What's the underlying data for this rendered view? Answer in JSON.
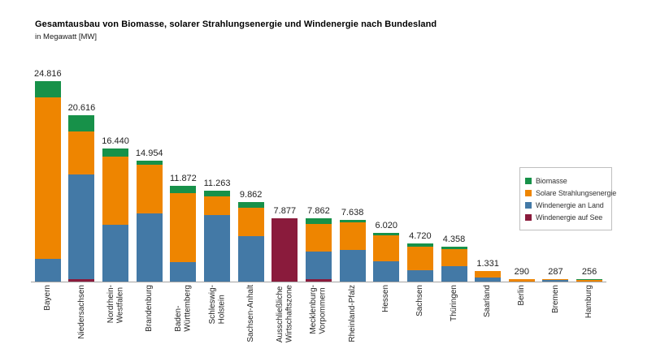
{
  "header": {
    "title": "Gesamtausbau von Biomasse, solarer Strahlungsenergie und Windenergie nach Bundesland",
    "subtitle": "in Megawatt [MW]"
  },
  "colors": {
    "biomasse": "#179149",
    "solar": "#EE8500",
    "wind_land": "#4379A6",
    "wind_see": "#8A1B3C",
    "axis_line": "#a3a3a3",
    "value_label": "#1f1f1f"
  },
  "legend": {
    "items": [
      {
        "id": "biomasse",
        "label": "Biomasse",
        "color": "#179149"
      },
      {
        "id": "solare-strahlungsenergie",
        "label": "Solare Strahlungsenergie",
        "color": "#EE8500"
      },
      {
        "id": "windenergie-an-land",
        "label": "Windenergie an Land",
        "color": "#4379A6"
      },
      {
        "id": "windenergie-auf-see",
        "label": "Windenergie auf See",
        "color": "#8A1B3C"
      }
    ]
  },
  "chart_data": {
    "type": "bar",
    "stacked": true,
    "title": "Gesamtausbau von Biomasse, solarer Strahlungsenergie und Windenergie nach Bundesland",
    "unit": "Megawatt [MW]",
    "grid": false,
    "y_axis_visible": false,
    "legend_position": "right",
    "ylim": [
      0,
      25000
    ],
    "stack_order_bottom_to_top": [
      "Windenergie auf See",
      "Windenergie an Land",
      "Solare Strahlungsenergie",
      "Biomasse"
    ],
    "categories": [
      "Bayern",
      "Niedersachsen",
      "Nordrhein-Westfalen",
      "Brandenburg",
      "Baden-Württemberg",
      "Schleswig-Holstein",
      "Sachsen-Anhalt",
      "Ausschließliche Wirtschaftszone",
      "Mecklenburg-Vorpommern",
      "Rheinland-Pfalz",
      "Hessen",
      "Sachsen",
      "Thüringen",
      "Saarland",
      "Berlin",
      "Bremen",
      "Hamburg"
    ],
    "category_ids": [
      "bayern",
      "niedersachsen",
      "nordrhein-westfalen",
      "brandenburg",
      "baden-wuerttemberg",
      "schleswig-holstein",
      "sachsen-anhalt",
      "ausschliessliche-wirtschaftszone",
      "mecklenburg-vorpommern",
      "rheinland-pfalz",
      "hessen",
      "sachsen",
      "thueringen",
      "saarland",
      "berlin",
      "bremen",
      "hamburg"
    ],
    "category_lines": [
      [
        "Bayern"
      ],
      [
        "Niedersachsen"
      ],
      [
        "Nordrhein-",
        "Westfalen"
      ],
      [
        "Brandenburg"
      ],
      [
        "Baden-",
        "Württemberg"
      ],
      [
        "Schleswig-",
        "Holstein"
      ],
      [
        "Sachsen-Anhalt"
      ],
      [
        "Ausschließliche",
        "Wirtschaftszone"
      ],
      [
        "Mecklenburg-",
        "Vorpommern"
      ],
      [
        "Rheinland-Pfalz"
      ],
      [
        "Hessen"
      ],
      [
        "Sachsen"
      ],
      [
        "Thüringen"
      ],
      [
        "Saarland"
      ],
      [
        "Berlin"
      ],
      [
        "Bremen"
      ],
      [
        "Hamburg"
      ]
    ],
    "totals": [
      24816,
      20616,
      16440,
      14954,
      11872,
      11263,
      9862,
      7877,
      7862,
      7638,
      6020,
      4720,
      4358,
      1331,
      290,
      287,
      256
    ],
    "total_labels": [
      "24.816",
      "20.616",
      "16.440",
      "14.954",
      "11.872",
      "11.263",
      "9.862",
      "7.877",
      "7.862",
      "7.638",
      "6.020",
      "4.720",
      "4.358",
      "1.331",
      "290",
      "287",
      "256"
    ],
    "series": [
      {
        "id": "biomasse",
        "name": "Biomasse",
        "color": "#179149",
        "values": [
          2030,
          2025,
          1000,
          500,
          893,
          760,
          728,
          0,
          752,
          262,
          322,
          349,
          337,
          0,
          0,
          0,
          66
        ]
      },
      {
        "id": "solare-strahlungsenergie",
        "name": "Solare Strahlungsenergie",
        "color": "#EE8500",
        "values": [
          19950,
          5345,
          8370,
          6050,
          8615,
          2308,
          3527,
          0,
          3353,
          3494,
          3156,
          2993,
          2123,
          780,
          290,
          37,
          190
        ]
      },
      {
        "id": "windenergie-an-land",
        "name": "Windenergie an Land",
        "color": "#4379A6",
        "values": [
          2836,
          12950,
          7070,
          8404,
          2364,
          8195,
          5607,
          0,
          3455,
          3882,
          2542,
          1378,
          1898,
          551,
          0,
          250,
          0
        ]
      },
      {
        "id": "windenergie-auf-see",
        "name": "Windenergie auf See",
        "color": "#8A1B3C",
        "values": [
          0,
          296,
          0,
          0,
          0,
          0,
          0,
          7877,
          302,
          0,
          0,
          0,
          0,
          0,
          0,
          0,
          0
        ]
      }
    ]
  }
}
